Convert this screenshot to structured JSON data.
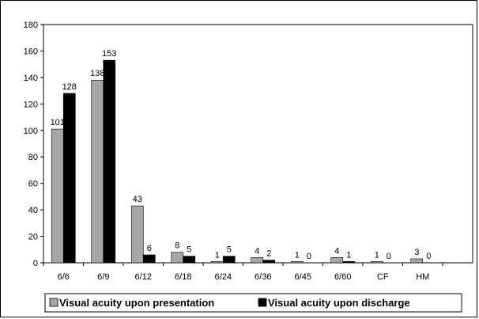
{
  "chart_data": {
    "type": "bar",
    "categories": [
      "6/6",
      "6/9",
      "6/12",
      "6/18",
      "6/24",
      "6/36",
      "6/45",
      "6/60",
      "CF",
      "HM"
    ],
    "series": [
      {
        "name": "Visual acuity upon presentation",
        "values": [
          101,
          138,
          43,
          8,
          1,
          4,
          1,
          4,
          1,
          3
        ],
        "color": "#a6a6a6"
      },
      {
        "name": "Visual acuity upon discharge",
        "values": [
          128,
          153,
          6,
          5,
          5,
          2,
          0,
          1,
          0,
          0
        ],
        "color": "#000000"
      }
    ],
    "data_labels": [
      [
        "101",
        "138",
        "43",
        "8",
        "1",
        "4",
        "1",
        "4",
        "1",
        "3"
      ],
      [
        "128",
        "153",
        "6",
        "5",
        "5",
        "2",
        "0",
        "1",
        "0",
        "0"
      ]
    ],
    "ylim": [
      0,
      180
    ],
    "yticks": [
      "0",
      "20",
      "40",
      "60",
      "80",
      "100",
      "120",
      "140",
      "160",
      "180"
    ],
    "grid": false,
    "legend_position": "bottom"
  }
}
